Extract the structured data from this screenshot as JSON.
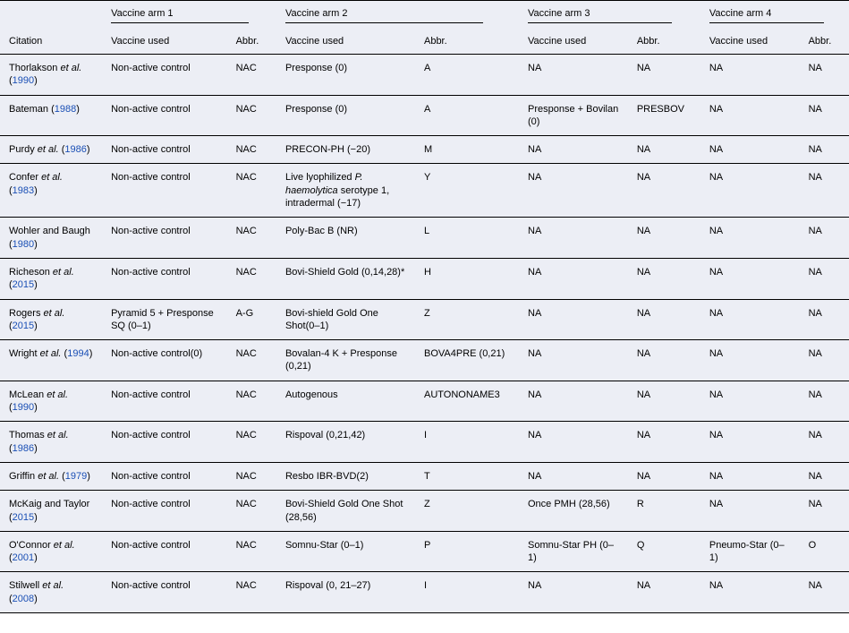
{
  "colors": {
    "background": "#eceef5",
    "text": "#000000",
    "link": "#1a4fb5",
    "border": "#000000"
  },
  "typography": {
    "font_family": "Arial, Helvetica, sans-serif",
    "font_size_pt": 8,
    "line_height": 1.3
  },
  "headers": {
    "citation": "Citation",
    "groups": [
      "Vaccine arm 1",
      "Vaccine arm 2",
      "Vaccine arm 3",
      "Vaccine arm 4"
    ],
    "sub": {
      "vaccine_used": "Vaccine used",
      "abbr": "Abbr."
    }
  },
  "rows": [
    {
      "citation_pre": "Thorlakson ",
      "citation_ital": "et al.",
      "citation_post": " (",
      "citation_link": "1990",
      "citation_end": ")",
      "v1": "Non-active control",
      "a1": "NAC",
      "v2": "Presponse (0)",
      "a2": "A",
      "v3": "NA",
      "a3": "NA",
      "v4": "NA",
      "a4": "NA"
    },
    {
      "citation_pre": "Bateman (",
      "citation_ital": "",
      "citation_post": "",
      "citation_link": "1988",
      "citation_end": ")",
      "v1": "Non-active control",
      "a1": "NAC",
      "v2": "Presponse (0)",
      "a2": "A",
      "v3": "Presponse + Bovilan (0)",
      "a3": "PRESBOV",
      "v4": "NA",
      "a4": "NA"
    },
    {
      "citation_pre": "Purdy ",
      "citation_ital": "et al.",
      "citation_post": " (",
      "citation_link": "1986",
      "citation_end": ")",
      "v1": "Non-active control",
      "a1": "NAC",
      "v2": "PRECON-PH (−20)",
      "a2": "M",
      "v3": "NA",
      "a3": "NA",
      "v4": "NA",
      "a4": "NA"
    },
    {
      "citation_pre": "Confer ",
      "citation_ital": "et al.",
      "citation_post": " (",
      "citation_link": "1983",
      "citation_end": ")",
      "v1": "Non-active control",
      "a1": "NAC",
      "v2_pre": "Live lyophilized ",
      "v2_ital": "P. haemolytica",
      "v2_post": " serotype 1, intradermal (−17)",
      "a2": "Y",
      "v3": "NA",
      "a3": "NA",
      "v4": "NA",
      "a4": "NA"
    },
    {
      "citation_pre": "Wohler and Baugh (",
      "citation_ital": "",
      "citation_post": "",
      "citation_link": "1980",
      "citation_end": ")",
      "v1": "Non-active control",
      "a1": "NAC",
      "v2": "Poly-Bac B (NR)",
      "a2": "L",
      "v3": "NA",
      "a3": "NA",
      "v4": "NA",
      "a4": "NA"
    },
    {
      "citation_pre": "Richeson ",
      "citation_ital": "et al.",
      "citation_post": " (",
      "citation_link": "2015",
      "citation_end": ")",
      "v1": "Non-active control",
      "a1": "NAC",
      "v2": "Bovi-Shield Gold (0,14,28)*",
      "a2": "H",
      "v3": "NA",
      "a3": "NA",
      "v4": "NA",
      "a4": "NA"
    },
    {
      "citation_pre": "Rogers ",
      "citation_ital": "et al.",
      "citation_post": " (",
      "citation_link": "2015",
      "citation_end": ")",
      "v1": "Pyramid 5 + Presponse SQ (0–1)",
      "a1": "A-G",
      "v2": "Bovi-shield Gold One Shot(0–1)",
      "a2": "Z",
      "v3": "NA",
      "a3": "NA",
      "v4": "NA",
      "a4": "NA"
    },
    {
      "citation_pre": "Wright ",
      "citation_ital": "et al.",
      "citation_post": " (",
      "citation_link": "1994",
      "citation_end": ")",
      "v1": "Non-active control(0)",
      "a1": "NAC",
      "v2": "Bovalan-4 K + Presponse (0,21)",
      "a2": "BOVA4PRE (0,21)",
      "v3": "NA",
      "a3": "NA",
      "v4": "NA",
      "a4": "NA"
    },
    {
      "citation_pre": "McLean ",
      "citation_ital": "et al.",
      "citation_post": " (",
      "citation_link": "1990",
      "citation_end": ")",
      "v1": "Non-active control",
      "a1": "NAC",
      "v2": "Autogenous",
      "a2": "AUTONONAME3",
      "v3": "NA",
      "a3": "NA",
      "v4": "NA",
      "a4": "NA"
    },
    {
      "citation_pre": "Thomas ",
      "citation_ital": "et al.",
      "citation_post": " (",
      "citation_link": "1986",
      "citation_end": ")",
      "v1": "Non-active control",
      "a1": "NAC",
      "v2": "Rispoval (0,21,42)",
      "a2": "I",
      "v3": "NA",
      "a3": "NA",
      "v4": "NA",
      "a4": "NA"
    },
    {
      "citation_pre": "Griffin ",
      "citation_ital": "et al.",
      "citation_post": " (",
      "citation_link": "1979",
      "citation_end": ")",
      "v1": "Non-active control",
      "a1": "NAC",
      "v2": "Resbo IBR-BVD(2)",
      "a2": "T",
      "v3": "NA",
      "a3": "NA",
      "v4": "NA",
      "a4": "NA"
    },
    {
      "citation_pre": "McKaig and Taylor (",
      "citation_ital": "",
      "citation_post": "",
      "citation_link": "2015",
      "citation_end": ")",
      "v1": "Non-active control",
      "a1": "NAC",
      "v2": "Bovi-Shield Gold One Shot (28,56)",
      "a2": "Z",
      "v3": "Once PMH (28,56)",
      "a3": "R",
      "v4": "NA",
      "a4": "NA"
    },
    {
      "citation_pre": "O'Connor ",
      "citation_ital": "et al.",
      "citation_post": " (",
      "citation_link": "2001",
      "citation_end": ")",
      "v1": "Non-active control",
      "a1": "NAC",
      "v2": "Somnu-Star (0–1)",
      "a2": "P",
      "v3": "Somnu-Star PH (0–1)",
      "a3": "Q",
      "v4": "Pneumo-Star (0–1)",
      "a4": "O"
    },
    {
      "citation_pre": "Stilwell ",
      "citation_ital": "et al.",
      "citation_post": " (",
      "citation_link": "2008",
      "citation_end": ")",
      "v1": "Non-active control",
      "a1": "NAC",
      "v2": "Rispoval (0, 21–27)",
      "a2": "I",
      "v3": "NA",
      "a3": "NA",
      "v4": "NA",
      "a4": "NA"
    }
  ]
}
